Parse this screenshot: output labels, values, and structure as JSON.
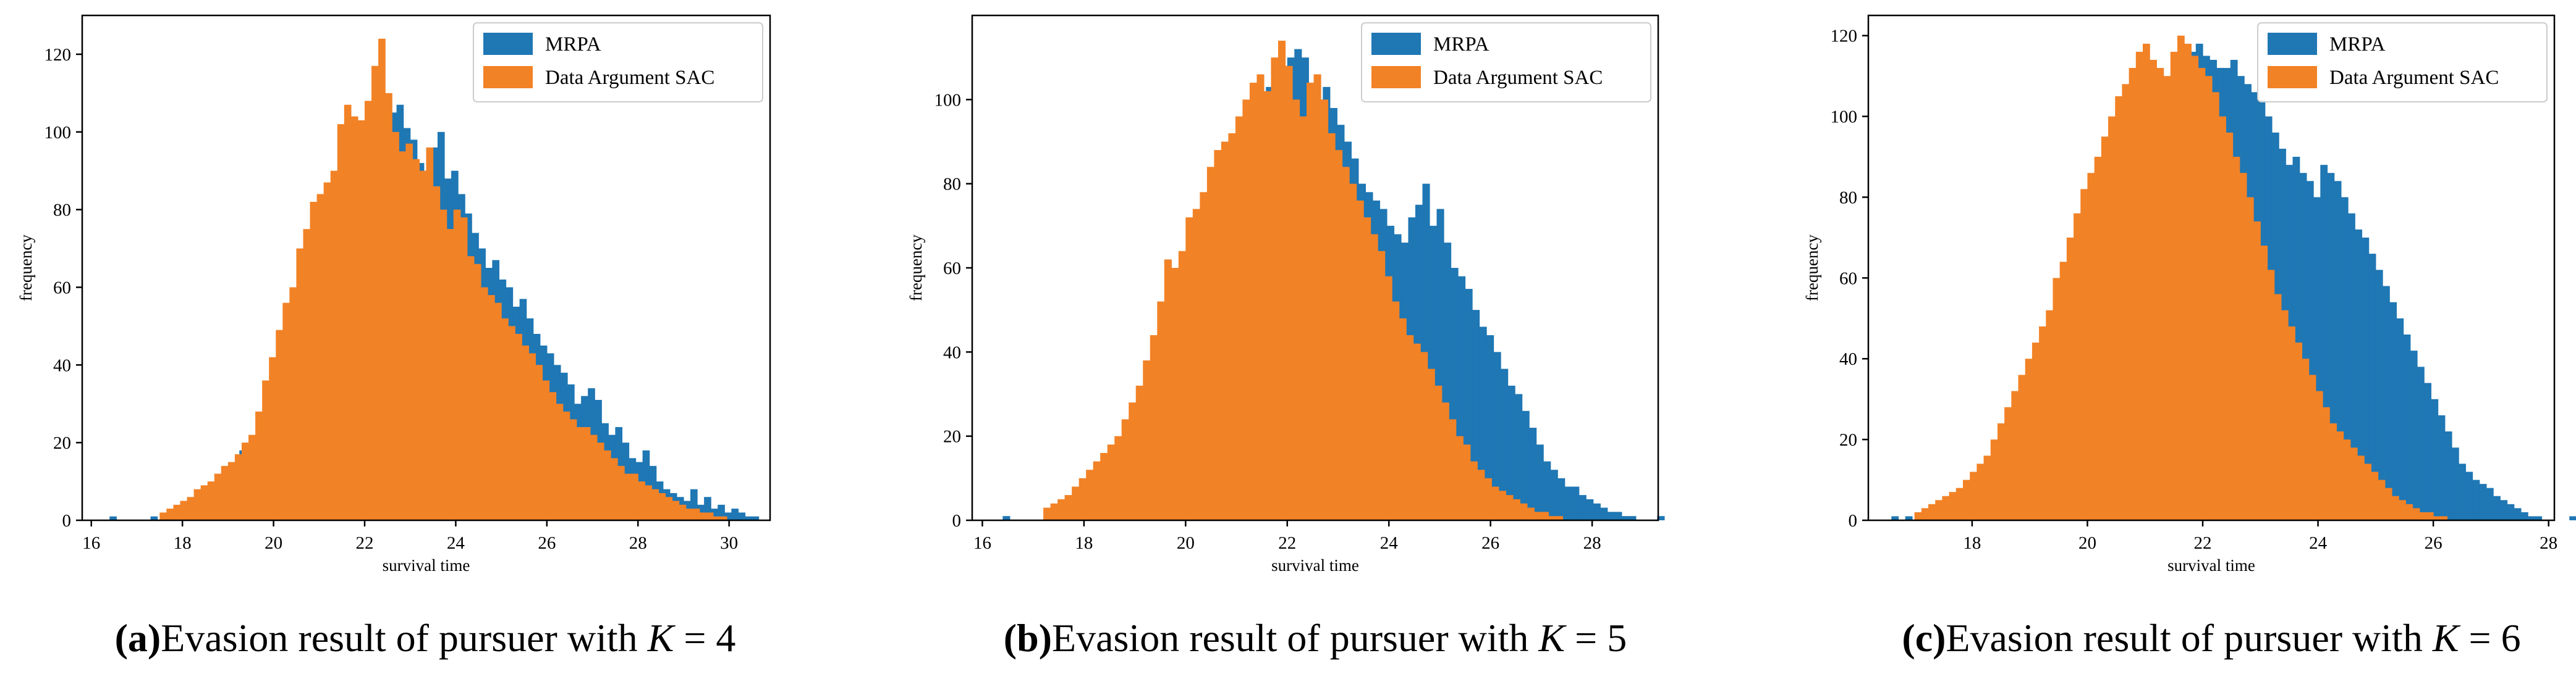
{
  "figure": {
    "colors": {
      "mrpa": "#1f77b4",
      "sac": "#f28226",
      "axis": "#000000",
      "background": "#ffffff"
    }
  },
  "chart_data": [
    {
      "type": "histogram",
      "title": "",
      "xlabel": "survival time",
      "ylabel": "frequency",
      "xlim": [
        15.8,
        30.9
      ],
      "ylim": [
        0,
        130
      ],
      "xticks": [
        16,
        18,
        20,
        22,
        24,
        26,
        28,
        30
      ],
      "yticks": [
        0,
        20,
        40,
        60,
        80,
        100,
        120
      ],
      "legend_position": "top-right",
      "caption_label": "(a)",
      "caption_text": "Evasion result of pursuer with ",
      "caption_var": "K",
      "caption_eq": " = 4",
      "series": [
        {
          "name": "MRPA",
          "color": "#1f77b4",
          "bin_start": 16.4,
          "bin_width": 0.15,
          "values": [
            1,
            0,
            0,
            0,
            0,
            0,
            1,
            0,
            0,
            2,
            2,
            1,
            3,
            5,
            5,
            9,
            8,
            12,
            11,
            18,
            20,
            20,
            25,
            30,
            35,
            34,
            40,
            44,
            43,
            47,
            45,
            50,
            55,
            65,
            72,
            80,
            85,
            90,
            96,
            100,
            97,
            105,
            107,
            101,
            98,
            92,
            90,
            96,
            100,
            88,
            90,
            84,
            79,
            74,
            70,
            65,
            67,
            62,
            60,
            55,
            57,
            52,
            48,
            45,
            43,
            40,
            38,
            35,
            30,
            32,
            34,
            31,
            25,
            22,
            24,
            20,
            16,
            15,
            18,
            14,
            10,
            8,
            7,
            6,
            5,
            8,
            4,
            6,
            3,
            4,
            2,
            3,
            2,
            1,
            1
          ]
        },
        {
          "name": "Data Argument SAC",
          "color": "#f28226",
          "bin_start": 17.5,
          "bin_width": 0.15,
          "values": [
            2,
            3,
            4,
            5,
            6,
            8,
            9,
            10,
            12,
            14,
            15,
            17,
            20,
            22,
            28,
            36,
            42,
            49,
            56,
            60,
            70,
            75,
            82,
            84,
            87,
            90,
            102,
            107,
            104,
            103,
            108,
            117,
            124,
            110,
            100,
            95,
            97,
            93,
            90,
            96,
            86,
            80,
            75,
            80,
            78,
            68,
            66,
            60,
            58,
            56,
            52,
            50,
            48,
            45,
            43,
            40,
            36,
            33,
            30,
            28,
            26,
            24,
            24,
            22,
            20,
            18,
            16,
            14,
            12,
            12,
            10,
            9,
            8,
            7,
            6,
            5,
            4,
            3,
            3,
            2,
            2,
            1,
            1
          ]
        }
      ]
    },
    {
      "type": "histogram",
      "title": "",
      "xlabel": "survival time",
      "ylabel": "frequency",
      "xlim": [
        15.8,
        29.3
      ],
      "ylim": [
        0,
        120
      ],
      "xticks": [
        16,
        18,
        20,
        22,
        24,
        26,
        28
      ],
      "yticks": [
        0,
        20,
        40,
        60,
        80,
        100
      ],
      "legend_position": "top-right",
      "caption_label": "(b)",
      "caption_text": "Evasion result of pursuer with ",
      "caption_var": "K",
      "caption_eq": " = 5",
      "series": [
        {
          "name": "MRPA",
          "color": "#1f77b4",
          "bin_start": 16.4,
          "bin_width": 0.14,
          "values": [
            1,
            0,
            0,
            0,
            0,
            0,
            1,
            1,
            2,
            2,
            3,
            4,
            5,
            6,
            8,
            9,
            12,
            14,
            16,
            18,
            20,
            22,
            26,
            30,
            34,
            38,
            42,
            50,
            56,
            62,
            68,
            74,
            80,
            86,
            90,
            94,
            98,
            103,
            107,
            108,
            110,
            112,
            110,
            104,
            100,
            103,
            98,
            94,
            90,
            86,
            80,
            78,
            76,
            74,
            70,
            68,
            66,
            72,
            75,
            80,
            70,
            74,
            66,
            60,
            58,
            55,
            50,
            46,
            44,
            40,
            36,
            32,
            30,
            26,
            22,
            18,
            14,
            12,
            10,
            8,
            8,
            6,
            5,
            4,
            3,
            2,
            2,
            1,
            1,
            0,
            0,
            0,
            1
          ]
        },
        {
          "name": "Data Argument SAC",
          "color": "#f28226",
          "bin_start": 17.2,
          "bin_width": 0.14,
          "values": [
            3,
            4,
            5,
            6,
            8,
            10,
            12,
            14,
            16,
            18,
            20,
            24,
            28,
            32,
            38,
            44,
            52,
            62,
            60,
            64,
            72,
            74,
            78,
            84,
            88,
            90,
            92,
            96,
            100,
            104,
            106,
            102,
            110,
            114,
            108,
            100,
            96,
            104,
            106,
            100,
            92,
            88,
            84,
            80,
            76,
            72,
            68,
            64,
            58,
            52,
            48,
            44,
            42,
            40,
            36,
            32,
            28,
            24,
            20,
            18,
            14,
            12,
            10,
            8,
            7,
            6,
            5,
            4,
            3,
            2,
            2,
            1,
            1
          ]
        }
      ]
    },
    {
      "type": "histogram",
      "title": "",
      "xlabel": "survival time",
      "ylabel": "frequency",
      "xlim": [
        16.2,
        28.1
      ],
      "ylim": [
        0,
        125
      ],
      "xticks": [
        18,
        20,
        22,
        24,
        26,
        28
      ],
      "yticks": [
        0,
        20,
        40,
        60,
        80,
        100,
        120
      ],
      "legend_position": "top-right",
      "caption_label": "(c)",
      "caption_text": "Evasion result of pursuer with ",
      "caption_var": "K",
      "caption_eq": " = 6",
      "series": [
        {
          "name": "MRPA",
          "color": "#1f77b4",
          "bin_start": 16.6,
          "bin_width": 0.12,
          "values": [
            1,
            0,
            1,
            0,
            1,
            1,
            2,
            2,
            3,
            4,
            5,
            6,
            8,
            10,
            12,
            14,
            18,
            22,
            26,
            30,
            32,
            34,
            36,
            38,
            42,
            44,
            48,
            50,
            55,
            60,
            62,
            65,
            70,
            75,
            80,
            84,
            88,
            92,
            96,
            100,
            105,
            110,
            114,
            116,
            118,
            115,
            114,
            112,
            112,
            114,
            110,
            108,
            106,
            104,
            100,
            96,
            92,
            88,
            90,
            86,
            84,
            80,
            88,
            86,
            84,
            80,
            76,
            72,
            70,
            66,
            62,
            58,
            54,
            50,
            46,
            42,
            38,
            34,
            30,
            26,
            22,
            18,
            14,
            12,
            10,
            9,
            8,
            6,
            5,
            4,
            3,
            2,
            1,
            1,
            0,
            0,
            0,
            0,
            1
          ]
        },
        {
          "name": "Data Argument SAC",
          "color": "#f28226",
          "bin_start": 17.0,
          "bin_width": 0.12,
          "values": [
            2,
            3,
            4,
            5,
            6,
            7,
            8,
            10,
            12,
            14,
            16,
            20,
            24,
            28,
            32,
            36,
            40,
            44,
            48,
            52,
            60,
            64,
            70,
            76,
            82,
            86,
            90,
            95,
            100,
            105,
            108,
            112,
            116,
            118,
            114,
            112,
            110,
            116,
            120,
            118,
            115,
            112,
            110,
            106,
            100,
            96,
            90,
            86,
            80,
            74,
            68,
            62,
            56,
            52,
            48,
            44,
            40,
            36,
            32,
            28,
            24,
            22,
            20,
            18,
            16,
            14,
            12,
            10,
            8,
            6,
            5,
            4,
            3,
            2,
            2,
            1,
            1
          ]
        }
      ]
    }
  ]
}
